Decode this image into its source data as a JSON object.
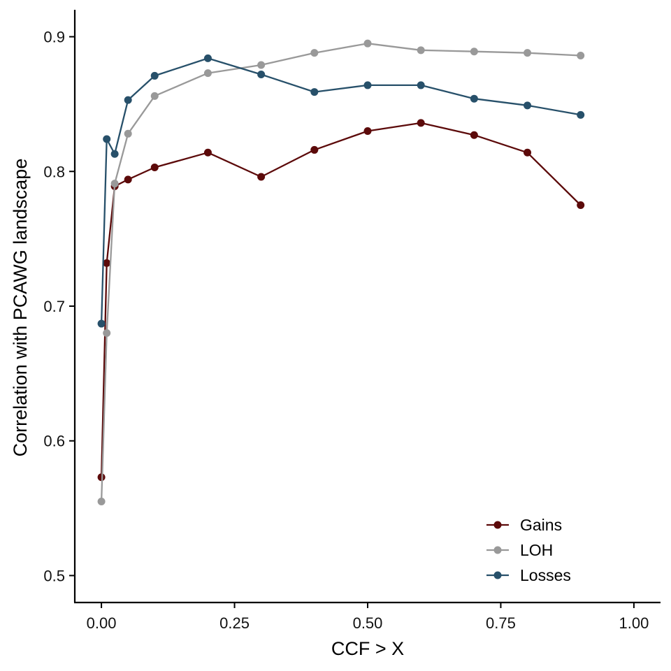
{
  "chart_data": {
    "type": "line",
    "title": "",
    "xlabel": "CCF > X",
    "ylabel": "Correlation with PCAWG landscape",
    "xlim": [
      -0.05,
      1.05
    ],
    "ylim": [
      0.48,
      0.92
    ],
    "xticks": [
      0,
      0.25,
      0.5,
      0.75,
      1
    ],
    "xtick_labels": [
      "0.00",
      "0.25",
      "0.50",
      "0.75",
      "1.00"
    ],
    "yticks": [
      0.5,
      0.6,
      0.7,
      0.8,
      0.9
    ],
    "ytick_labels": [
      "0.5",
      "0.6",
      "0.7",
      "0.8",
      "0.9"
    ],
    "grid": false,
    "legend_position": "bottom-right",
    "x": [
      0,
      0.01,
      0.025,
      0.05,
      0.1,
      0.2,
      0.3,
      0.4,
      0.5,
      0.6,
      0.7,
      0.8,
      0.9
    ],
    "series": [
      {
        "name": "Gains",
        "color": "#5c0a0a",
        "values": [
          0.573,
          0.732,
          0.789,
          0.794,
          0.803,
          0.814,
          0.796,
          0.816,
          0.83,
          0.836,
          0.827,
          0.814,
          0.775
        ]
      },
      {
        "name": "LOH",
        "color": "#999999",
        "values": [
          0.555,
          0.68,
          0.791,
          0.828,
          0.856,
          0.873,
          0.879,
          0.888,
          0.895,
          0.89,
          0.889,
          0.888,
          0.886
        ]
      },
      {
        "name": "Losses",
        "color": "#27506a",
        "values": [
          0.687,
          0.824,
          0.813,
          0.853,
          0.871,
          0.884,
          0.872,
          0.859,
          0.864,
          0.864,
          0.854,
          0.849,
          0.842
        ]
      }
    ]
  }
}
